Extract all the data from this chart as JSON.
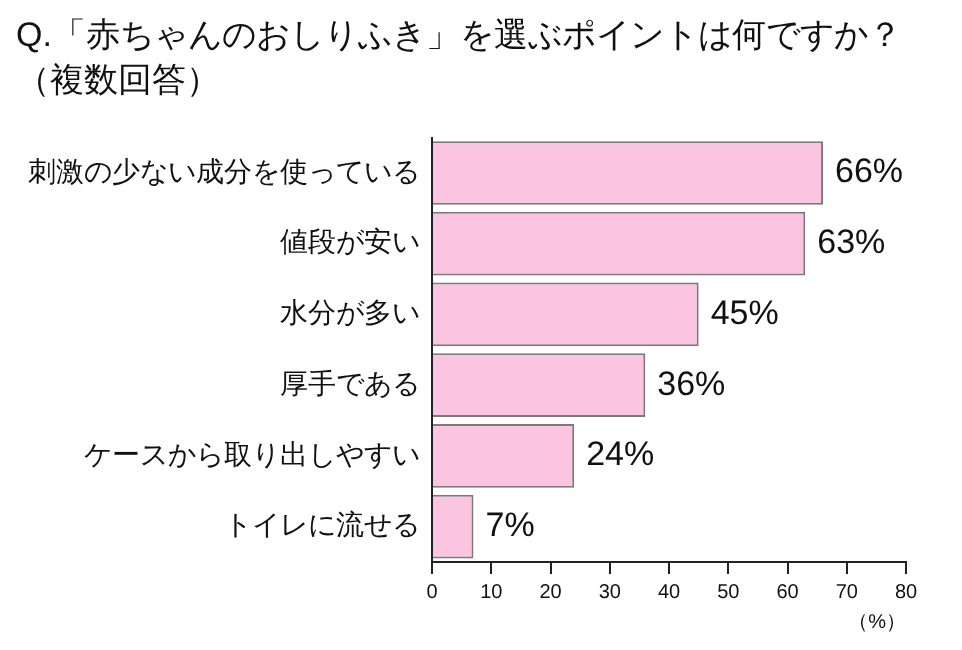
{
  "chart_data": {
    "type": "bar",
    "orientation": "horizontal",
    "title": "Q.「赤ちゃんのおしりふき」を選ぶポイントは何ですか？",
    "subtitle": "（複数回答）",
    "xlabel": "（%）",
    "categories": [
      "刺激の少ない成分を使っている",
      "値段が安い",
      "水分が多い",
      "厚手である",
      "ケースから取り出しやすい",
      "トイレに流せる"
    ],
    "values": [
      66,
      63,
      45,
      36,
      24,
      7
    ],
    "value_labels": [
      "66%",
      "63%",
      "45%",
      "36%",
      "24%",
      "7%"
    ],
    "color": "#fbc4e1",
    "xlim": [
      0,
      80
    ],
    "xticks": [
      0,
      10,
      20,
      30,
      40,
      50,
      60,
      70,
      80
    ],
    "grid": false,
    "legend": false
  }
}
